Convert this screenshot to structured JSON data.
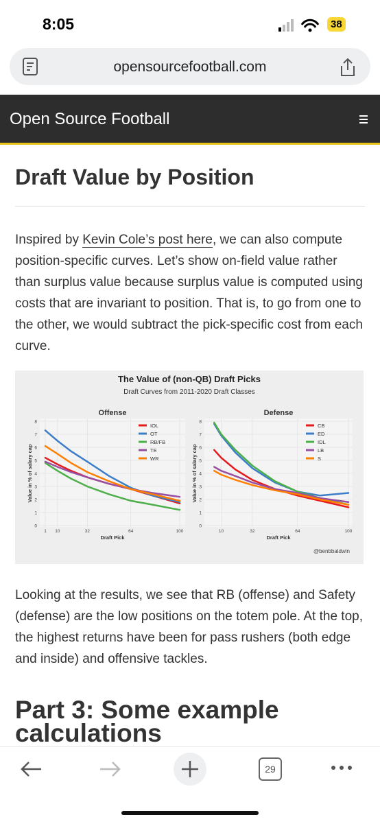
{
  "status": {
    "time": "8:05",
    "battery": "38"
  },
  "browser": {
    "url": "opensourcefootball.com",
    "tabs": "29"
  },
  "site": {
    "title": "Open Source Football"
  },
  "article": {
    "heading": "Draft Value by Position",
    "intro_before": "Inspired by ",
    "intro_link": "Kevin Cole’s post here",
    "intro_after": ", we can also compute position-specific curves. Let’s show on-field value rather than surplus value because surplus value is computed using costs that are invariant to position. That is, to go from one to the other, we would subtract the pick-specific cost from each curve.",
    "results": "Looking at the results, we see that RB (offense) and Safety (defense) are the low positions on the totem pole. At the top, the highest returns have been for pass rushers (both edge and inside) and offensive tackles.",
    "next_heading": "Part 3: Some example calculations"
  },
  "figure": {
    "title": "The Value of (non-QB) Draft Picks",
    "subtitle": "Draft Curves from 2011-2020 Draft Classes",
    "credit": "@benbbaldwin"
  },
  "chart_data": [
    {
      "type": "line",
      "title": "Offense",
      "x_label": "Draft Pick",
      "y_label": "Value in % of salary cap",
      "xlim": [
        1,
        100
      ],
      "ylim": [
        0,
        8
      ],
      "xticks": [
        1,
        10,
        32,
        64,
        100
      ],
      "yticks": [
        0,
        1,
        2,
        3,
        4,
        5,
        6,
        7,
        8
      ],
      "grid": true,
      "legend": "top-right",
      "x": [
        1,
        10,
        20,
        32,
        48,
        64,
        80,
        100
      ],
      "series": [
        {
          "name": "IOL",
          "color": "#e41a1c",
          "values": [
            5.2,
            4.7,
            4.2,
            3.7,
            3.2,
            2.8,
            2.3,
            1.7
          ]
        },
        {
          "name": "OT",
          "color": "#3b7dc8",
          "values": [
            7.3,
            6.5,
            5.7,
            4.9,
            3.8,
            2.9,
            2.3,
            1.8
          ]
        },
        {
          "name": "RB/FB",
          "color": "#4daf4a",
          "values": [
            4.8,
            4.2,
            3.6,
            3.0,
            2.4,
            1.9,
            1.6,
            1.2
          ]
        },
        {
          "name": "TE",
          "color": "#984ea3",
          "values": [
            4.9,
            4.5,
            4.1,
            3.7,
            3.2,
            2.8,
            2.5,
            2.2
          ]
        },
        {
          "name": "WR",
          "color": "#ff7f00",
          "values": [
            6.1,
            5.5,
            4.8,
            4.1,
            3.4,
            2.8,
            2.4,
            1.9
          ]
        }
      ]
    },
    {
      "type": "line",
      "title": "Defense",
      "x_label": "Draft Pick",
      "y_label": "Value in % of salary cap",
      "xlim": [
        1,
        100
      ],
      "ylim": [
        0,
        8
      ],
      "xticks": [
        10,
        32,
        64,
        100
      ],
      "yticks": [
        0,
        1,
        2,
        3,
        4,
        5,
        6,
        7,
        8
      ],
      "grid": true,
      "legend": "top-right",
      "x": [
        5,
        10,
        20,
        32,
        48,
        64,
        80,
        100
      ],
      "series": [
        {
          "name": "CB",
          "color": "#e41a1c",
          "values": [
            5.8,
            5.2,
            4.3,
            3.5,
            2.8,
            2.3,
            1.9,
            1.4
          ]
        },
        {
          "name": "ED",
          "color": "#3b7dc8",
          "values": [
            7.8,
            6.9,
            5.6,
            4.4,
            3.3,
            2.6,
            2.3,
            2.5
          ]
        },
        {
          "name": "IDL",
          "color": "#4daf4a",
          "values": [
            7.9,
            7.0,
            5.8,
            4.6,
            3.4,
            2.6,
            2.1,
            1.6
          ]
        },
        {
          "name": "LB",
          "color": "#984ea3",
          "values": [
            4.5,
            4.2,
            3.8,
            3.3,
            2.8,
            2.5,
            2.1,
            1.8
          ]
        },
        {
          "name": "S",
          "color": "#ff7f00",
          "values": [
            4.2,
            3.9,
            3.5,
            3.1,
            2.7,
            2.4,
            2.0,
            1.6
          ]
        }
      ]
    }
  ]
}
